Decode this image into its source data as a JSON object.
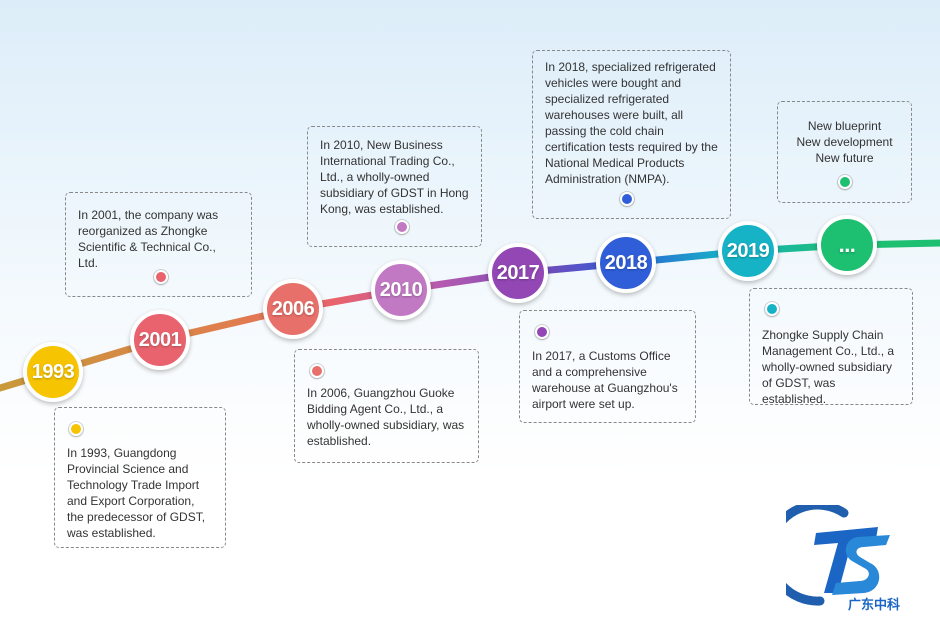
{
  "timeline": {
    "colors": {
      "1993": "#f6c400",
      "2001": "#e8636e",
      "2006": "#e8706a",
      "2010": "#c279c4",
      "2017": "#9247b4",
      "2018": "#2f5ed8",
      "2019": "#16b2c6",
      "future": "#1dbf71",
      "line_start": "#c89a3a"
    },
    "nodes": [
      {
        "label": "1993"
      },
      {
        "label": "2001"
      },
      {
        "label": "2006"
      },
      {
        "label": "2010"
      },
      {
        "label": "2017"
      },
      {
        "label": "2018"
      },
      {
        "label": "2019"
      },
      {
        "label": "..."
      }
    ],
    "events": [
      {
        "text": "In 1993, Guangdong Provincial Science and Technology Trade Import and Export Corporation, the predecessor of GDST, was established."
      },
      {
        "text": "In 2001, the company was reorganized as Zhongke Scientific & Technical Co., Ltd."
      },
      {
        "text": "In 2006, Guangzhou Guoke Bidding Agent Co., Ltd., a wholly-owned subsidiary, was established."
      },
      {
        "text": "In 2010, New Business International Trading Co., Ltd., a wholly-owned subsidiary of GDST in Hong Kong, was established."
      },
      {
        "text": "In 2017, a Customs Office and a comprehensive warehouse at Guangzhou's airport were set up."
      },
      {
        "text": "In 2018, specialized refrigerated vehicles were bought and specialized refrigerated warehouses were built, all passing the cold chain certification tests required by the National Medical Products Administration (NMPA)."
      },
      {
        "text": "Zhongke Supply Chain Management Co., Ltd., a wholly-owned subsidiary of GDST, was established."
      },
      {
        "lines": [
          "New blueprint",
          "New development",
          "New future"
        ]
      }
    ]
  },
  "logo": {
    "text": "广东中科",
    "colors": {
      "ring": "#1f5fae",
      "letters": "#1b66c4",
      "text": "#1b66c4"
    }
  }
}
